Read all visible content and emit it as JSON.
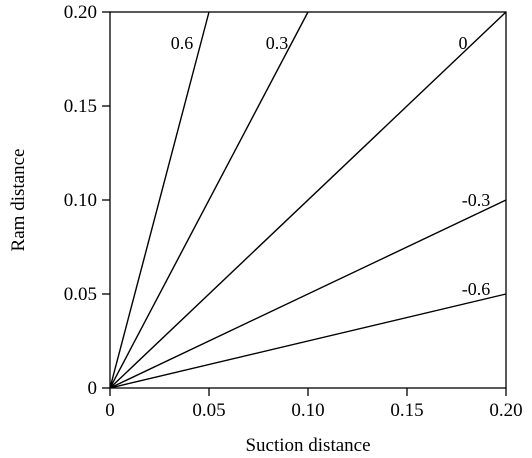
{
  "chart_data": {
    "type": "line",
    "xlabel": "Suction distance",
    "ylabel": "Ram distance",
    "xlim": [
      0,
      0.2
    ],
    "ylim": [
      0,
      0.2
    ],
    "grid": false,
    "x_ticks": [
      0,
      0.05,
      0.1,
      0.15,
      0.2
    ],
    "x_tick_labels": [
      "0",
      "0.05",
      "0.10",
      "0.15",
      "0.20"
    ],
    "y_ticks": [
      0,
      0.05,
      0.1,
      0.15,
      0.2
    ],
    "y_tick_labels": [
      "0",
      "0.05",
      "0.10",
      "0.15",
      "0.20"
    ],
    "series": [
      {
        "name": "0.6",
        "x": [
          0,
          0.05
        ],
        "y": [
          0,
          0.2
        ]
      },
      {
        "name": "0.3",
        "x": [
          0,
          0.1
        ],
        "y": [
          0,
          0.2
        ]
      },
      {
        "name": "0",
        "x": [
          0,
          0.2
        ],
        "y": [
          0,
          0.2
        ]
      },
      {
        "name": "-0.3",
        "x": [
          0,
          0.2
        ],
        "y": [
          0,
          0.1
        ]
      },
      {
        "name": "-0.6",
        "x": [
          0,
          0.2
        ],
        "y": [
          0,
          0.05
        ]
      }
    ],
    "line_color": "#000000"
  }
}
